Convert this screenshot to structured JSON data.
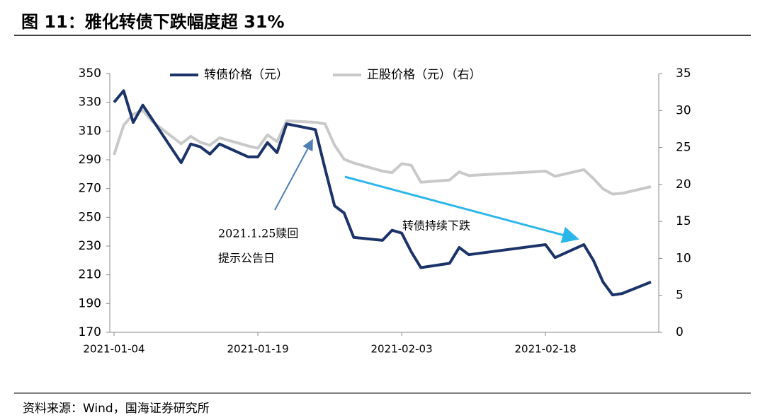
{
  "chart_data": {
    "type": "line",
    "title": "图 11：雅化转债下跌幅度超 31%",
    "source": "资料来源：Wind，国海证券研究所",
    "annotations": [
      "2021.1.25赎回",
      "提示公告日",
      "转债持续下跌"
    ],
    "x": [
      "2021-01-04",
      "2021-01-05",
      "2021-01-06",
      "2021-01-07",
      "2021-01-08",
      "2021-01-11",
      "2021-01-12",
      "2021-01-13",
      "2021-01-14",
      "2021-01-15",
      "2021-01-18",
      "2021-01-19",
      "2021-01-20",
      "2021-01-21",
      "2021-01-22",
      "2021-01-25",
      "2021-01-26",
      "2021-01-27",
      "2021-01-28",
      "2021-01-29",
      "2021-02-01",
      "2021-02-02",
      "2021-02-03",
      "2021-02-04",
      "2021-02-05",
      "2021-02-08",
      "2021-02-09",
      "2021-02-10",
      "2021-02-18",
      "2021-02-19",
      "2021-02-22",
      "2021-02-23",
      "2021-02-24",
      "2021-02-25",
      "2021-02-26",
      "2021-03-01"
    ],
    "series": [
      {
        "name": "转债价格（元）",
        "color": "#1b3368",
        "values": [
          330,
          338,
          316,
          328,
          318,
          288,
          301,
          299,
          294,
          301,
          292,
          292,
          302,
          295,
          315,
          311,
          284,
          258,
          253,
          236,
          234,
          241,
          239,
          226,
          215,
          218,
          229,
          224,
          231,
          222,
          231,
          220,
          205,
          196,
          197,
          205
        ]
      },
      {
        "name": "正股价格（元）（右）",
        "color": "#c9c9c9",
        "axis": "y2",
        "values": [
          24,
          28,
          29.5,
          30,
          28.5,
          25.5,
          26.5,
          25.7,
          25.3,
          26.3,
          25.2,
          24.9,
          26.7,
          25.8,
          28.6,
          28.4,
          28.2,
          25.3,
          23.4,
          22.9,
          21.8,
          21.6,
          22.8,
          22.6,
          20.3,
          20.6,
          21.7,
          21.2,
          21.8,
          21.1,
          22,
          20.8,
          19.4,
          18.7,
          18.8,
          19.7
        ]
      }
    ],
    "xlim": [
      "2021-01-04",
      "2021-03-01"
    ],
    "xticks": [
      "2021-01-04",
      "2021-01-19",
      "2021-02-03",
      "2021-02-18"
    ],
    "ylim": [
      170,
      350
    ],
    "yticks": [
      170,
      190,
      210,
      230,
      250,
      270,
      290,
      310,
      330,
      350
    ],
    "y2lim": [
      0,
      35
    ],
    "y2ticks": [
      0,
      5,
      10,
      15,
      20,
      25,
      30,
      35
    ]
  }
}
